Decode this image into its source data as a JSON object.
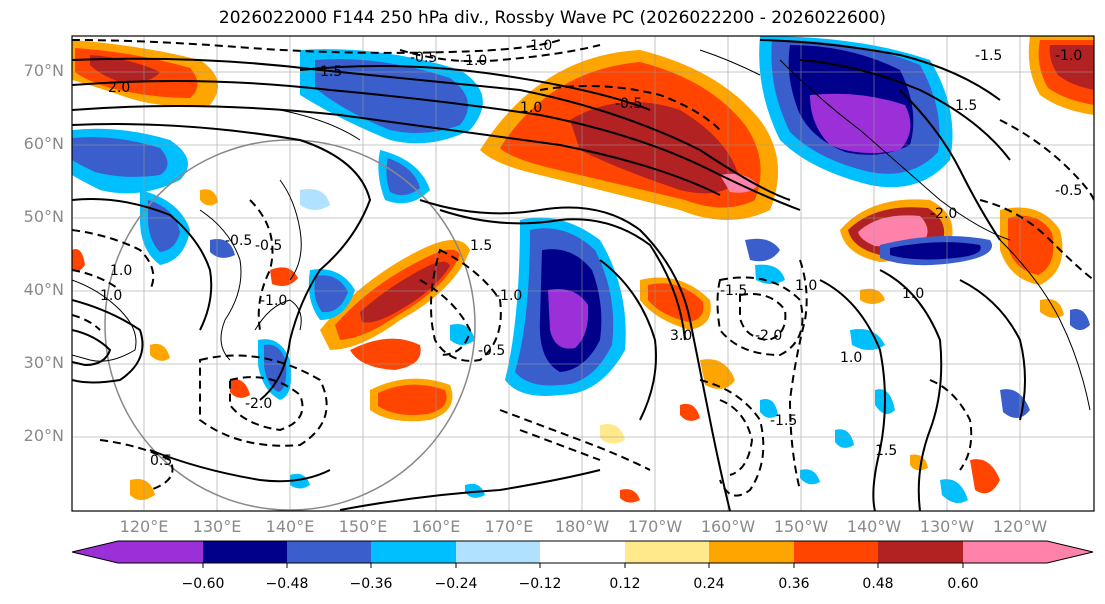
{
  "title": "2026022000 F144 250 hPa div., Rossby Wave PC (2026022200 - 2026022600)",
  "lat_labels": [
    "70°N",
    "60°N",
    "50°N",
    "40°N",
    "30°N",
    "20°N"
  ],
  "lon_labels": [
    "120°E",
    "130°E",
    "140°E",
    "150°E",
    "160°E",
    "170°E",
    "180°W",
    "170°W",
    "160°W",
    "150°W",
    "140°W",
    "130°W",
    "120°W"
  ],
  "colorbar": {
    "tick_labels": [
      "−0.60",
      "−0.48",
      "−0.36",
      "−0.24",
      "−0.12",
      "0.12",
      "0.24",
      "0.36",
      "0.48",
      "0.60"
    ],
    "colors": [
      "#9b30d9",
      "#00008b",
      "#3a5fcd",
      "#00bfff",
      "#b0e2ff",
      "#ffffff",
      "#ffe98a",
      "#ffa500",
      "#ff4500",
      "#b22222",
      "#ff82ab"
    ]
  },
  "contour_labels": [
    "2.0",
    "1.5",
    "-0.5",
    "-1.0",
    "1.0",
    "-0.5",
    "1.0",
    "-1.5",
    "-1.0",
    "1.5",
    "-0.5",
    "1.0",
    "-2.0",
    "-0.5",
    "-1.0",
    "1.0",
    "1.5",
    "-0.5",
    "-2.0",
    "-1.0",
    "3.0",
    "-1.5",
    "-2.0",
    "1.0",
    "1.0",
    "-1.5",
    "0.5",
    "1.5",
    "1.0",
    "-0.5"
  ]
}
